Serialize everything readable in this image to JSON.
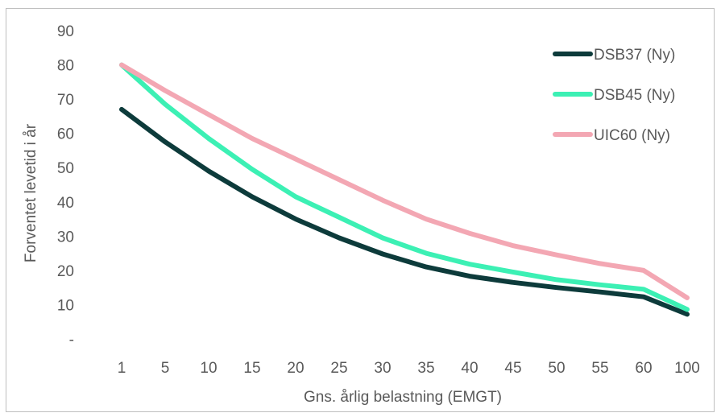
{
  "chart_data": {
    "type": "line",
    "title": "",
    "xlabel": "Gns. årlig belastning (EMGT)",
    "ylabel": "Forventet levetid i år",
    "categories": [
      "1",
      "5",
      "10",
      "15",
      "20",
      "25",
      "30",
      "35",
      "40",
      "45",
      "50",
      "55",
      "60",
      "100"
    ],
    "y_ticks": [
      "-",
      "10",
      "20",
      "30",
      "40",
      "50",
      "60",
      "70",
      "80",
      "90"
    ],
    "ylim": [
      0,
      90
    ],
    "grid": false,
    "legend_position": "top-right",
    "series": [
      {
        "name": "DSB37 (Ny)",
        "color": "#0d3b3b",
        "values": [
          67,
          57.5,
          49,
          41.5,
          35,
          29.5,
          24.8,
          21,
          18.3,
          16.5,
          15,
          13.7,
          12.3,
          7.2
        ]
      },
      {
        "name": "DSB45 (Ny)",
        "color": "#3cf0b4",
        "values": [
          80,
          68.5,
          58.5,
          49.5,
          41.5,
          35.5,
          29.5,
          25,
          21.8,
          19.5,
          17.3,
          15.8,
          14.5,
          8.6
        ]
      },
      {
        "name": "UIC60 (Ny)",
        "color": "#f3a7b3",
        "values": [
          80,
          72.5,
          65.5,
          58.5,
          52.5,
          46.5,
          40.5,
          35,
          30.8,
          27.2,
          24.5,
          22,
          20,
          12
        ]
      }
    ]
  }
}
